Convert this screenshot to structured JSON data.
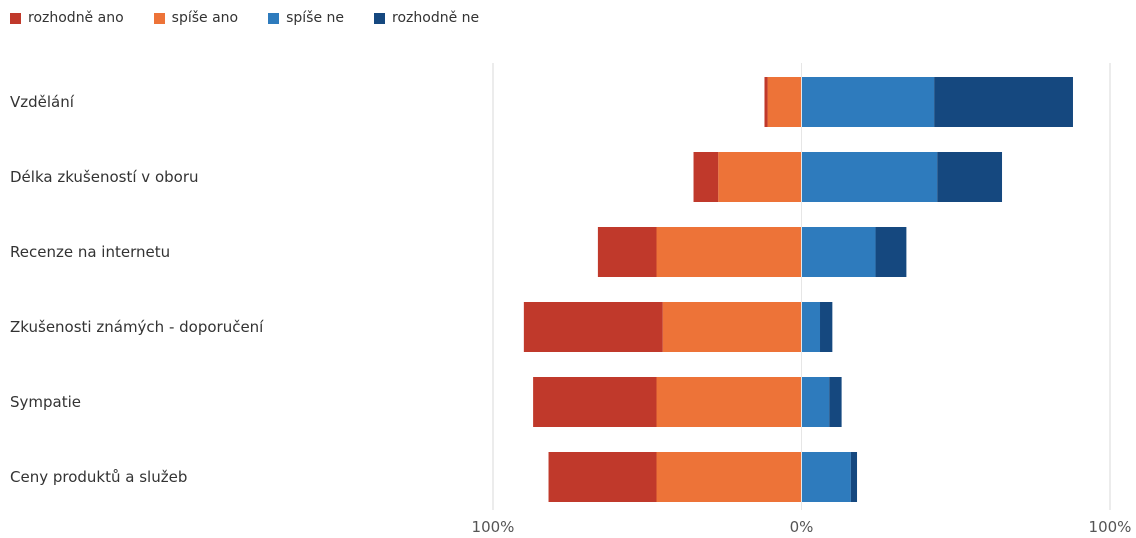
{
  "chart_data": {
    "type": "bar",
    "orientation": "horizontal",
    "stacked": "diverging",
    "categories": [
      "Vzdělání",
      "Délka zkušeností v oboru",
      "Recenze na internetu",
      "Zkušenosti známých - doporučení",
      "Sympatie",
      "Ceny produktů a služeb"
    ],
    "series": [
      {
        "name": "rozhodně ano",
        "color": "#c0392b",
        "side": "left",
        "values": [
          1,
          8,
          19,
          45,
          40,
          35
        ]
      },
      {
        "name": "spíše ano",
        "color": "#ed7338",
        "side": "left",
        "values": [
          11,
          27,
          47,
          45,
          47,
          47
        ]
      },
      {
        "name": "spíše ne",
        "color": "#2e7bbd",
        "side": "right",
        "values": [
          43,
          44,
          24,
          6,
          9,
          16
        ]
      },
      {
        "name": "rozhodně ne",
        "color": "#15487f",
        "side": "right",
        "values": [
          45,
          21,
          10,
          4,
          4,
          2
        ]
      }
    ],
    "xlim": [
      -100,
      100
    ],
    "x_tick_labels": [
      "100%",
      "0%",
      "100%"
    ],
    "grid": true,
    "legend_position": "top-left"
  }
}
